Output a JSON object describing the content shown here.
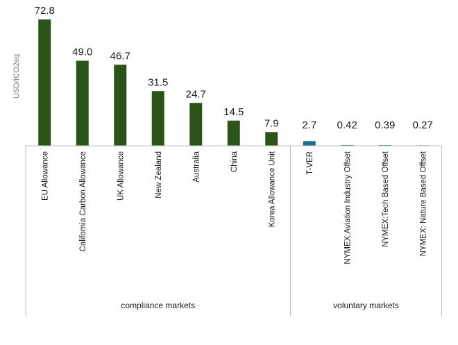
{
  "chart_data": {
    "type": "bar",
    "ylabel": "USD/tCO2eq",
    "categories": [
      "EU Allowance",
      "California Carbon Allowance",
      "UK Allowance",
      "New Zealand",
      "Australia",
      "China",
      "Korea Allowance Unit",
      "T-VER",
      "NYMEX:Aviation Industry Offset",
      "NYMEX:Tech Based Offset",
      "NYMEX: Nature Based Offset"
    ],
    "values": [
      72.8,
      49.0,
      46.7,
      31.5,
      24.7,
      14.5,
      7.9,
      2.7,
      0.42,
      0.39,
      0.27
    ],
    "value_labels": [
      "72.8",
      "49.0",
      "46.7",
      "31.5",
      "24.7",
      "14.5",
      "7.9",
      "2.7",
      "0.42",
      "0.39",
      "0.27"
    ],
    "groups": [
      {
        "label": "compliance markets",
        "count": 7
      },
      {
        "label": "voluntary markets",
        "count": 4
      }
    ],
    "colors": {
      "compliance": "#2d5418",
      "voluntary": "#1f6e8c"
    },
    "ylim": [
      0,
      75
    ],
    "grid": false,
    "legend": "none"
  }
}
